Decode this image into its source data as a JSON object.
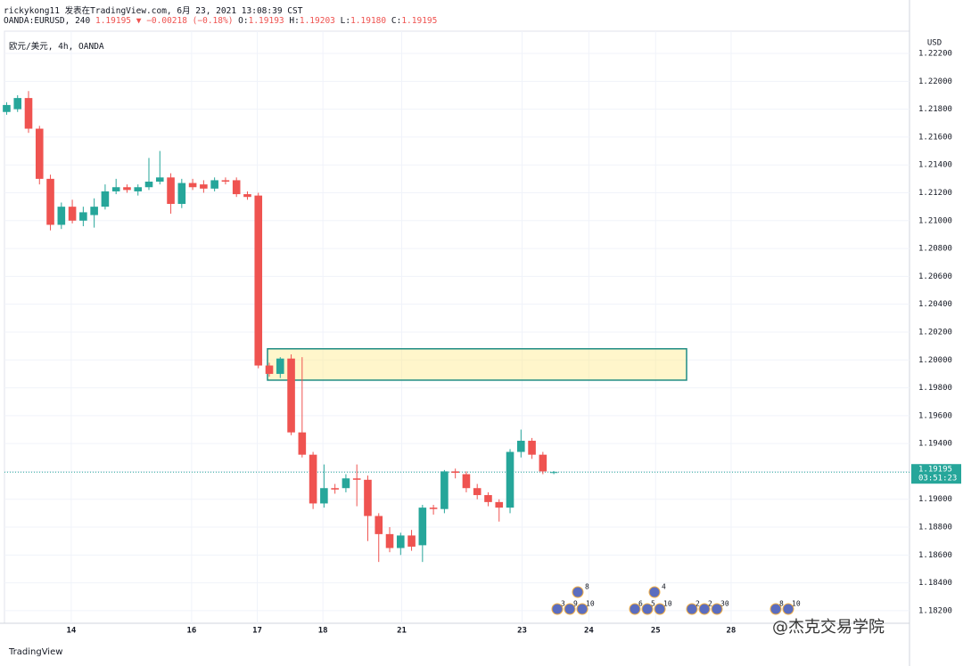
{
  "header": {
    "publish": "rickykong11 发表在TradingView.com, 6月 23, 2021 13:08:39 CST",
    "symbol": "OANDA:EURUSD, 240",
    "price": "1.19195",
    "change": "▼ −0.00218 (−0.18%)",
    "o_label": "O:",
    "o": "1.19193",
    "h_label": "H:",
    "h": "1.19203",
    "l_label": "L:",
    "l": "1.19180",
    "c_label": "C:",
    "c": "1.19195"
  },
  "footer": {
    "brand": "TradingView",
    "watermark": "@杰克交易学院"
  },
  "events": [
    {
      "top": "8",
      "labels": [
        "3",
        "9",
        "10"
      ]
    },
    {
      "top": "4",
      "labels": [
        "6",
        "5",
        "10"
      ]
    },
    {
      "labels": [
        "2",
        "2",
        "30"
      ]
    },
    {
      "labels": [
        "8",
        "10"
      ]
    }
  ],
  "chart_data": {
    "type": "candlestick",
    "title": "欧元/美元, 4h, OANDA",
    "y_axis_label": "USD",
    "up_color": "#26a69a",
    "down_color": "#ef5350",
    "grid": true,
    "categories": [
      null,
      null,
      null,
      null,
      null,
      null,
      null,
      null,
      null,
      null,
      null,
      null,
      null,
      null,
      null,
      null,
      null,
      null,
      null,
      null,
      null,
      null,
      null,
      null,
      null,
      null,
      null,
      null,
      null,
      null,
      null,
      null,
      null,
      null,
      null,
      null,
      null,
      null,
      null,
      null,
      null,
      null,
      null,
      null,
      null,
      null,
      null,
      null,
      null,
      null,
      null
    ],
    "open": [
      1.2178,
      1.218,
      1.2188,
      1.2166,
      1.213,
      1.2097,
      1.211,
      1.21,
      1.2104,
      1.211,
      1.2121,
      1.2124,
      1.2121,
      1.2124,
      1.2128,
      1.2131,
      1.2112,
      1.2127,
      1.2126,
      1.2123,
      1.2129,
      1.2129,
      1.2119,
      1.2118,
      1.1996,
      1.199,
      1.2001,
      1.1948,
      1.1932,
      1.1897,
      1.1908,
      1.1908,
      1.1915,
      1.1914,
      1.1888,
      1.1875,
      1.1865,
      1.1874,
      1.1867,
      1.1894,
      1.1893,
      1.192,
      1.1918,
      1.1908,
      1.1903,
      1.1898,
      1.1894,
      1.1934,
      1.1942,
      1.1932,
      1.19193
    ],
    "high": [
      1.2185,
      1.219,
      1.2193,
      1.2168,
      1.2133,
      1.2113,
      1.2115,
      1.211,
      1.2116,
      1.2126,
      1.213,
      1.2126,
      1.2126,
      1.2145,
      1.215,
      1.2134,
      1.213,
      1.213,
      1.2129,
      1.2131,
      1.2131,
      1.2131,
      1.2121,
      1.212,
      1.1998,
      1.2002,
      1.2004,
      1.2002,
      1.1934,
      1.1925,
      1.1911,
      1.1918,
      1.1925,
      1.1917,
      1.189,
      1.188,
      1.1876,
      1.1878,
      1.1896,
      1.1896,
      1.1921,
      1.1922,
      1.192,
      1.1911,
      1.1905,
      1.19,
      1.1936,
      1.195,
      1.1944,
      1.1934,
      1.19203
    ],
    "low": [
      1.2176,
      1.2178,
      1.2163,
      1.2126,
      1.2093,
      1.2094,
      1.2098,
      1.2096,
      1.2095,
      1.2108,
      1.2119,
      1.212,
      1.2118,
      1.2122,
      1.2126,
      1.2105,
      1.2109,
      1.2122,
      1.212,
      1.2121,
      1.2126,
      1.2117,
      1.2115,
      1.1994,
      1.1988,
      1.1987,
      1.1946,
      1.193,
      1.1893,
      1.1894,
      1.1904,
      1.1905,
      1.1895,
      1.187,
      1.1855,
      1.1862,
      1.186,
      1.1863,
      1.1855,
      1.1889,
      1.189,
      1.1915,
      1.1905,
      1.19,
      1.1895,
      1.1884,
      1.189,
      1.193,
      1.1929,
      1.1918,
      1.1918
    ],
    "close": [
      1.2183,
      1.2188,
      1.2166,
      1.213,
      1.2097,
      1.211,
      1.21,
      1.2106,
      1.211,
      1.2121,
      1.2124,
      1.2122,
      1.2124,
      1.2128,
      1.2131,
      1.2112,
      1.2127,
      1.2124,
      1.2123,
      1.2129,
      1.2128,
      1.2119,
      1.2117,
      1.1996,
      1.199,
      1.2001,
      1.1948,
      1.1932,
      1.1897,
      1.1908,
      1.1907,
      1.1915,
      1.1914,
      1.1888,
      1.1875,
      1.1865,
      1.1874,
      1.1866,
      1.1894,
      1.1893,
      1.192,
      1.1919,
      1.1908,
      1.1903,
      1.1898,
      1.1894,
      1.1934,
      1.1942,
      1.1932,
      1.192,
      1.19195
    ],
    "last_price": 1.19195,
    "countdown": "03:51:23",
    "zone": {
      "low": 1.19855,
      "high": 1.2008
    },
    "xlim": [
      -0.2,
      82.5
    ],
    "xticks": [
      {
        "value": 5.9,
        "label": "14"
      },
      {
        "value": 16.9,
        "label": "16"
      },
      {
        "value": 22.9,
        "label": "17"
      },
      {
        "value": 28.9,
        "label": "18"
      },
      {
        "value": 36.1,
        "label": "21"
      },
      {
        "value": 47.1,
        "label": "23"
      },
      {
        "value": 53.2,
        "label": "24"
      },
      {
        "value": 59.3,
        "label": "25"
      },
      {
        "value": 66.2,
        "label": "28"
      }
    ],
    "ylim": [
      1.1811,
      1.2236
    ],
    "yticks": [
      {
        "value": 1.222,
        "label": "1.22200"
      },
      {
        "value": 1.22,
        "label": "1.22000"
      },
      {
        "value": 1.218,
        "label": "1.21800"
      },
      {
        "value": 1.216,
        "label": "1.21600"
      },
      {
        "value": 1.214,
        "label": "1.21400"
      },
      {
        "value": 1.212,
        "label": "1.21200"
      },
      {
        "value": 1.21,
        "label": "1.21000"
      },
      {
        "value": 1.208,
        "label": "1.20800"
      },
      {
        "value": 1.206,
        "label": "1.20600"
      },
      {
        "value": 1.204,
        "label": "1.20400"
      },
      {
        "value": 1.202,
        "label": "1.20200"
      },
      {
        "value": 1.2,
        "label": "1.20000"
      },
      {
        "value": 1.198,
        "label": "1.19800"
      },
      {
        "value": 1.196,
        "label": "1.19600"
      },
      {
        "value": 1.194,
        "label": "1.19400"
      },
      {
        "value": 1.192,
        "label": "1.19200"
      },
      {
        "value": 1.19,
        "label": "1.19000"
      },
      {
        "value": 1.188,
        "label": "1.18800"
      },
      {
        "value": 1.186,
        "label": "1.18600"
      },
      {
        "value": 1.184,
        "label": "1.18400"
      },
      {
        "value": 1.182,
        "label": "1.18200"
      }
    ]
  }
}
